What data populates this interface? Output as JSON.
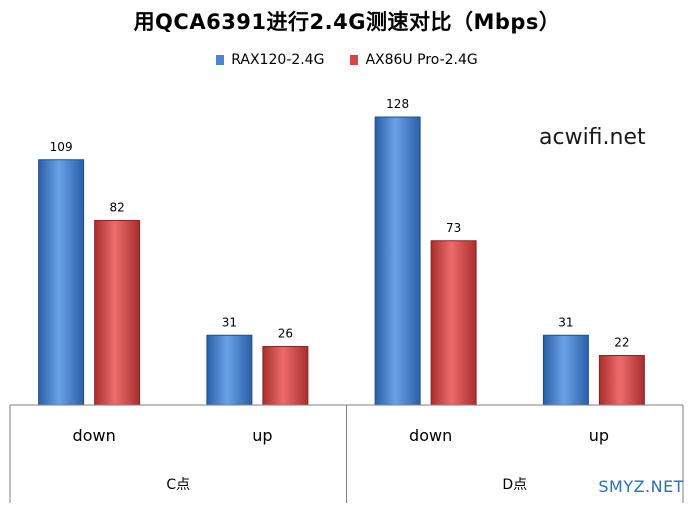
{
  "chart_data": {
    "type": "bar",
    "title": "用QCA6391进行2.4G测速对比（Mbps）",
    "groups": [
      {
        "label": "C点",
        "categories": [
          "down",
          "up"
        ]
      },
      {
        "label": "D点",
        "categories": [
          "down",
          "up"
        ]
      }
    ],
    "series": [
      {
        "name": "RAX120-2.4G",
        "color": "#4a86d4",
        "values": [
          109,
          31,
          128,
          31
        ]
      },
      {
        "name": "AX86U Pro-2.4G",
        "color": "#d84545",
        "values": [
          82,
          26,
          73,
          22
        ]
      }
    ],
    "ylim": [
      0,
      140
    ],
    "legend_position": "top",
    "grid": false,
    "data_labels": true
  },
  "watermarks": {
    "site": "acwifi.net",
    "corner": "SMYZ.NET"
  }
}
